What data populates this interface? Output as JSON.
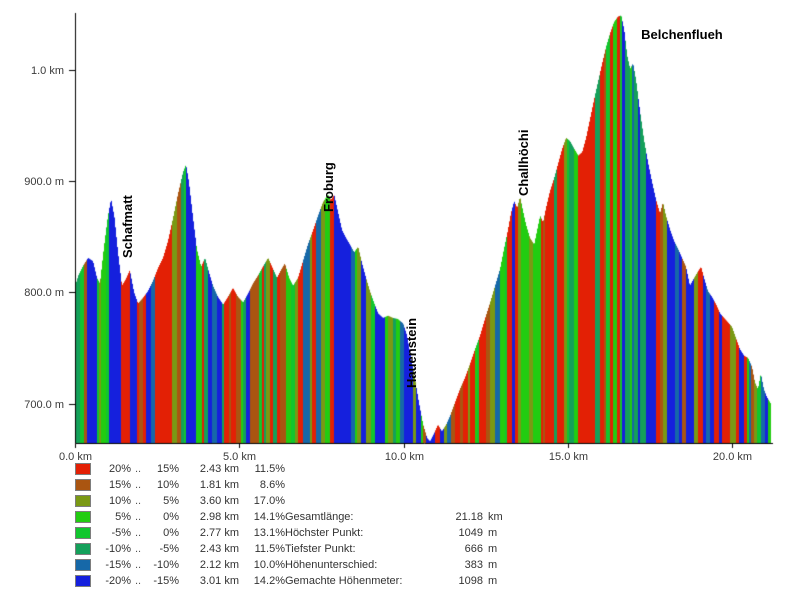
{
  "chart_data": {
    "type": "area",
    "title": "",
    "xlabel": "",
    "ylabel": "",
    "total_km": 21.18,
    "xlim": [
      0,
      21.18
    ],
    "ylim": [
      664,
      1060
    ],
    "y_ticks": [
      {
        "label": "1.0 km",
        "elev": 1000
      },
      {
        "label": "900.0 m",
        "elev": 900
      },
      {
        "label": "800.0 m",
        "elev": 800
      },
      {
        "label": "700.0 m",
        "elev": 700
      }
    ],
    "x_ticks": [
      {
        "label": "0.0 km",
        "km": 0
      },
      {
        "label": "5.0 km",
        "km": 5
      },
      {
        "label": "10.0 km",
        "km": 10
      },
      {
        "label": "15.0 km",
        "km": 15
      },
      {
        "label": "20.0 km",
        "km": 20
      }
    ],
    "peak_labels": [
      {
        "name": "Schafmatt",
        "km": 2.07,
        "elev": 831,
        "rotated": true
      },
      {
        "name": "Froburg",
        "km": 8.19,
        "elev": 872,
        "rotated": true
      },
      {
        "name": "Hauenstein",
        "km": 10.72,
        "elev": 714,
        "rotated": true
      },
      {
        "name": "Challhöchi",
        "km": 14.12,
        "elev": 887,
        "rotated": true
      },
      {
        "name": "Belchenflueh",
        "km": 16.99,
        "elev": 1027,
        "rotated": false
      }
    ],
    "legend_separator": "..",
    "gradient_scale": [
      {
        "from": "20%",
        "to": "15%",
        "color": "#e32005",
        "dist": "2.43 km",
        "pct": "11.5%"
      },
      {
        "from": "15%",
        "to": "10%",
        "color": "#aa5511",
        "dist": "1.81 km",
        "pct": "8.6%"
      },
      {
        "from": "10%",
        "to": "5%",
        "color": "#7a9914",
        "dist": "3.60 km",
        "pct": "17.0%"
      },
      {
        "from": "5%",
        "to": "0%",
        "color": "#22cc11",
        "dist": "2.98 km",
        "pct": "14.1%"
      },
      {
        "from": "-5%",
        "to": "0%",
        "color": "#11c62e",
        "dist": "2.77 km",
        "pct": "13.1%"
      },
      {
        "from": "-10%",
        "to": "-5%",
        "color": "#14a05a",
        "dist": "2.43 km",
        "pct": "11.5%"
      },
      {
        "from": "-15%",
        "to": "-10%",
        "color": "#1668a8",
        "dist": "2.12 km",
        "pct": "10.0%"
      },
      {
        "from": "-20%",
        "to": "-15%",
        "color": "#1520dd",
        "dist": "3.01 km",
        "pct": "14.2%"
      }
    ],
    "stats": [
      {
        "label": "Gesamtlänge:",
        "value": "21.18",
        "unit": "km"
      },
      {
        "label": "Höchster Punkt:",
        "value": "1049",
        "unit": "m"
      },
      {
        "label": "Tiefster Punkt:",
        "value": "666",
        "unit": "m"
      },
      {
        "label": "Höhenunterschied:",
        "value": "383",
        "unit": "m"
      },
      {
        "label": "Gemachte Höhenmeter:",
        "value": "1098",
        "unit": "m"
      }
    ],
    "profile": [
      [
        0.0,
        805
      ],
      [
        0.1,
        815
      ],
      [
        0.25,
        824
      ],
      [
        0.4,
        831
      ],
      [
        0.55,
        828
      ],
      [
        0.67,
        813
      ],
      [
        0.76,
        808
      ],
      [
        0.88,
        840
      ],
      [
        1.0,
        868
      ],
      [
        1.1,
        884
      ],
      [
        1.2,
        868
      ],
      [
        1.31,
        836
      ],
      [
        1.43,
        806
      ],
      [
        1.55,
        812
      ],
      [
        1.67,
        820
      ],
      [
        1.8,
        800
      ],
      [
        1.92,
        790
      ],
      [
        2.07,
        795
      ],
      [
        2.22,
        801
      ],
      [
        2.37,
        810
      ],
      [
        2.53,
        822
      ],
      [
        2.68,
        831
      ],
      [
        2.83,
        846
      ],
      [
        2.98,
        866
      ],
      [
        3.14,
        889
      ],
      [
        3.29,
        908
      ],
      [
        3.38,
        915
      ],
      [
        3.47,
        899
      ],
      [
        3.59,
        868
      ],
      [
        3.71,
        839
      ],
      [
        3.84,
        823
      ],
      [
        3.96,
        831
      ],
      [
        4.08,
        818
      ],
      [
        4.2,
        806
      ],
      [
        4.35,
        796
      ],
      [
        4.51,
        789
      ],
      [
        4.66,
        796
      ],
      [
        4.81,
        804
      ],
      [
        4.96,
        796
      ],
      [
        5.12,
        791
      ],
      [
        5.27,
        799
      ],
      [
        5.42,
        808
      ],
      [
        5.57,
        815
      ],
      [
        5.72,
        823
      ],
      [
        5.88,
        831
      ],
      [
        6.03,
        821
      ],
      [
        6.15,
        813
      ],
      [
        6.27,
        820
      ],
      [
        6.39,
        826
      ],
      [
        6.52,
        813
      ],
      [
        6.64,
        806
      ],
      [
        6.79,
        813
      ],
      [
        6.94,
        828
      ],
      [
        7.09,
        843
      ],
      [
        7.25,
        856
      ],
      [
        7.4,
        869
      ],
      [
        7.55,
        881
      ],
      [
        7.7,
        888
      ],
      [
        7.79,
        883
      ],
      [
        7.89,
        888
      ],
      [
        8.01,
        872
      ],
      [
        8.13,
        856
      ],
      [
        8.25,
        849
      ],
      [
        8.37,
        843
      ],
      [
        8.5,
        836
      ],
      [
        8.62,
        841
      ],
      [
        8.74,
        826
      ],
      [
        8.86,
        813
      ],
      [
        8.98,
        801
      ],
      [
        9.1,
        791
      ],
      [
        9.23,
        781
      ],
      [
        9.38,
        777
      ],
      [
        9.53,
        779
      ],
      [
        9.68,
        777
      ],
      [
        9.83,
        776
      ],
      [
        9.99,
        772
      ],
      [
        10.11,
        761
      ],
      [
        10.23,
        741
      ],
      [
        10.35,
        722
      ],
      [
        10.47,
        701
      ],
      [
        10.6,
        681
      ],
      [
        10.72,
        669
      ],
      [
        10.81,
        666
      ],
      [
        10.93,
        673
      ],
      [
        11.05,
        681
      ],
      [
        11.17,
        675
      ],
      [
        11.3,
        681
      ],
      [
        11.42,
        689
      ],
      [
        11.57,
        701
      ],
      [
        11.72,
        713
      ],
      [
        11.87,
        723
      ],
      [
        12.03,
        736
      ],
      [
        12.18,
        749
      ],
      [
        12.33,
        761
      ],
      [
        12.48,
        776
      ],
      [
        12.64,
        791
      ],
      [
        12.79,
        806
      ],
      [
        12.94,
        821
      ],
      [
        13.06,
        839
      ],
      [
        13.18,
        856
      ],
      [
        13.27,
        871
      ],
      [
        13.37,
        882
      ],
      [
        13.46,
        876
      ],
      [
        13.55,
        886
      ],
      [
        13.64,
        873
      ],
      [
        13.73,
        861
      ],
      [
        13.85,
        849
      ],
      [
        13.98,
        843
      ],
      [
        14.07,
        856
      ],
      [
        14.16,
        869
      ],
      [
        14.25,
        863
      ],
      [
        14.34,
        876
      ],
      [
        14.46,
        891
      ],
      [
        14.59,
        903
      ],
      [
        14.71,
        916
      ],
      [
        14.83,
        929
      ],
      [
        14.95,
        939
      ],
      [
        15.07,
        936
      ],
      [
        15.2,
        929
      ],
      [
        15.32,
        923
      ],
      [
        15.44,
        926
      ],
      [
        15.56,
        939
      ],
      [
        15.68,
        956
      ],
      [
        15.8,
        973
      ],
      [
        15.92,
        989
      ],
      [
        16.05,
        1006
      ],
      [
        16.17,
        1021
      ],
      [
        16.29,
        1033
      ],
      [
        16.41,
        1043
      ],
      [
        16.53,
        1048
      ],
      [
        16.63,
        1049
      ],
      [
        16.72,
        1036
      ],
      [
        16.81,
        1013
      ],
      [
        16.9,
        1001
      ],
      [
        16.99,
        1006
      ],
      [
        17.08,
        991
      ],
      [
        17.2,
        963
      ],
      [
        17.33,
        936
      ],
      [
        17.45,
        916
      ],
      [
        17.57,
        899
      ],
      [
        17.69,
        883
      ],
      [
        17.81,
        871
      ],
      [
        17.9,
        881
      ],
      [
        17.99,
        869
      ],
      [
        18.12,
        856
      ],
      [
        18.24,
        846
      ],
      [
        18.36,
        839
      ],
      [
        18.48,
        831
      ],
      [
        18.6,
        823
      ],
      [
        18.72,
        806
      ],
      [
        18.85,
        813
      ],
      [
        18.97,
        819
      ],
      [
        19.06,
        823
      ],
      [
        19.15,
        813
      ],
      [
        19.27,
        801
      ],
      [
        19.39,
        796
      ],
      [
        19.52,
        789
      ],
      [
        19.64,
        781
      ],
      [
        19.76,
        777
      ],
      [
        19.88,
        773
      ],
      [
        20.0,
        769
      ],
      [
        20.12,
        759
      ],
      [
        20.24,
        749
      ],
      [
        20.37,
        743
      ],
      [
        20.49,
        741
      ],
      [
        20.61,
        733
      ],
      [
        20.7,
        719
      ],
      [
        20.79,
        713
      ],
      [
        20.88,
        727
      ],
      [
        20.97,
        713
      ],
      [
        21.06,
        706
      ],
      [
        21.18,
        700
      ]
    ]
  }
}
